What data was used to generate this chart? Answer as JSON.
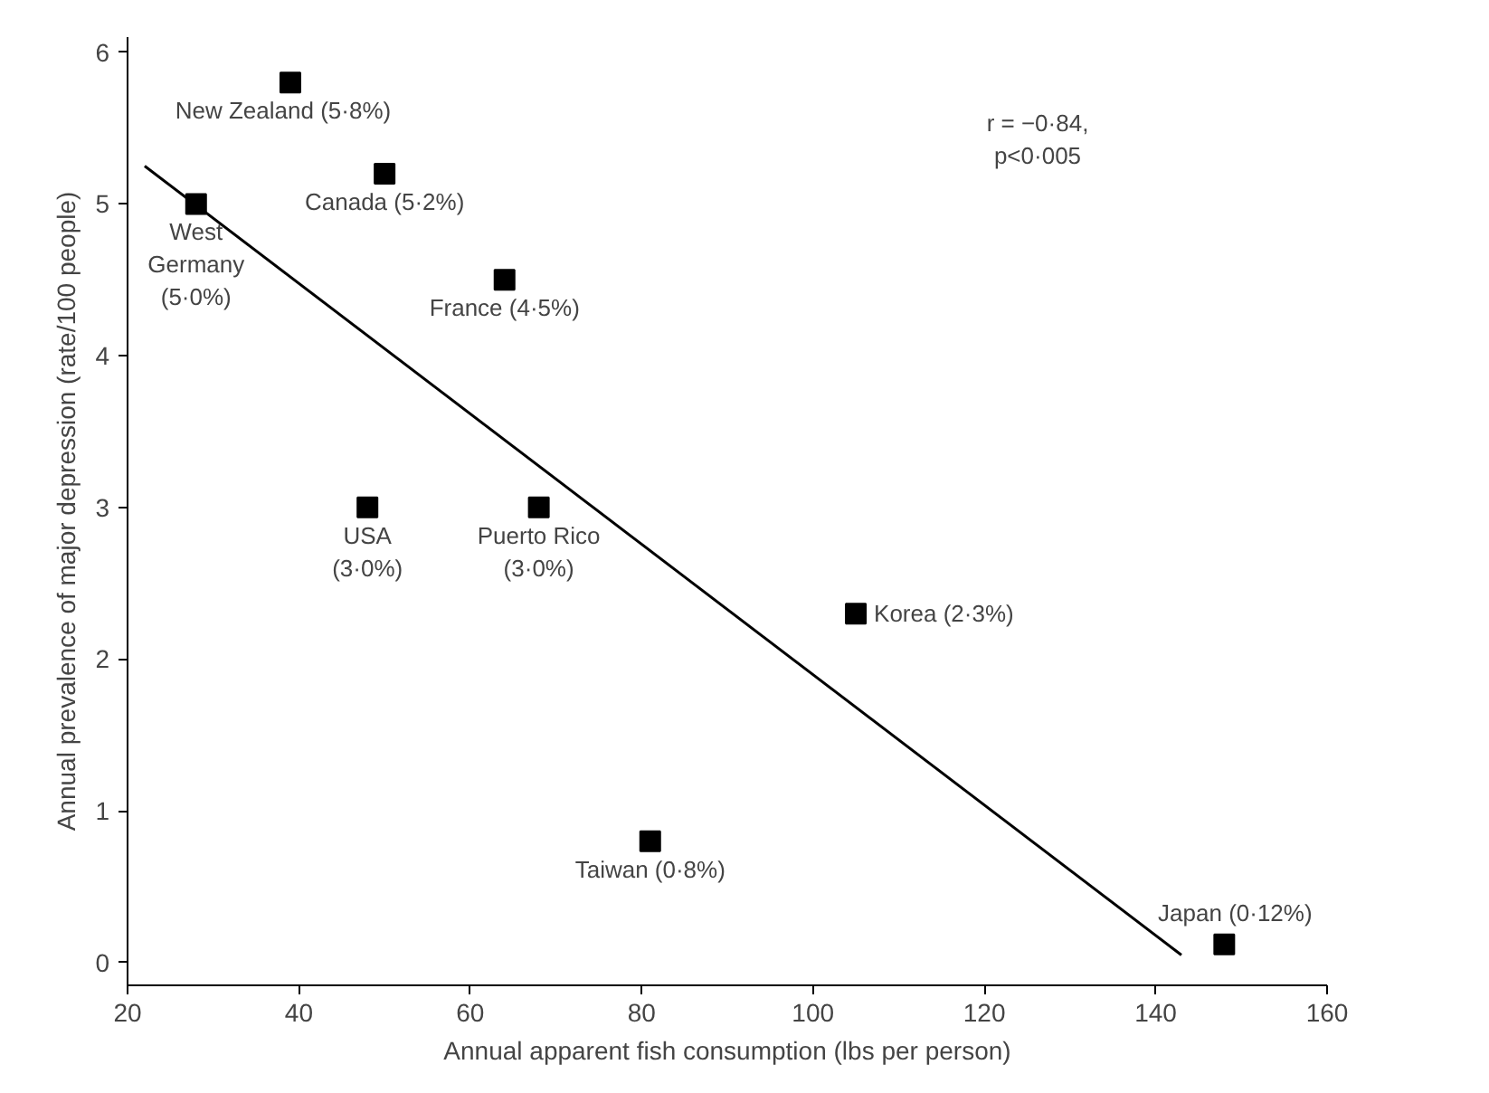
{
  "chart_data": {
    "type": "scatter",
    "xlabel": "Annual apparent fish consumption (lbs per person)",
    "ylabel": "Annual prevalence of major depression (rate/100 people)",
    "x": [
      39,
      50,
      28,
      64,
      48,
      68,
      105,
      81,
      148
    ],
    "series": [
      {
        "color": "#000000",
        "marker": "square",
        "values": [
          5.8,
          5.2,
          5.0,
          4.5,
          3.0,
          3.0,
          2.3,
          0.8,
          0.12
        ]
      },
      {
        "type": "line",
        "color": "#000000",
        "line_style": "solid",
        "marker": "none",
        "x": [
          22,
          143
        ],
        "values": [
          5.25,
          0.05
        ]
      }
    ],
    "annotations": [
      {
        "text": "New Zealand (5·8%)",
        "x": 39,
        "y": 5.8
      },
      {
        "text": "Canada (5·2%)",
        "x": 50,
        "y": 5.2
      },
      {
        "text": "West\nGermany\n(5·0%)",
        "x": 28,
        "y": 5.0
      },
      {
        "text": "France (4·5%)",
        "x": 64,
        "y": 4.5
      },
      {
        "text": "USA\n(3·0%)",
        "x": 48,
        "y": 3.0
      },
      {
        "text": "Puerto Rico\n(3·0%)",
        "x": 68,
        "y": 3.0
      },
      {
        "text": "Korea (2·3%)",
        "x": 105,
        "y": 2.3
      },
      {
        "text": "Taiwan (0·8%)",
        "x": 81,
        "y": 0.8
      },
      {
        "text": "Japan (0·12%)",
        "x": 148,
        "y": 0.12
      },
      "r = −0·84,\np<0·005"
    ],
    "xlim": [
      20,
      160
    ],
    "ylim": [
      -0.15,
      6.1
    ],
    "xticks": [
      20,
      40,
      60,
      80,
      100,
      120,
      140,
      160
    ],
    "yticks": [
      0,
      1,
      2,
      3,
      4,
      5,
      6
    ],
    "grid": false
  }
}
